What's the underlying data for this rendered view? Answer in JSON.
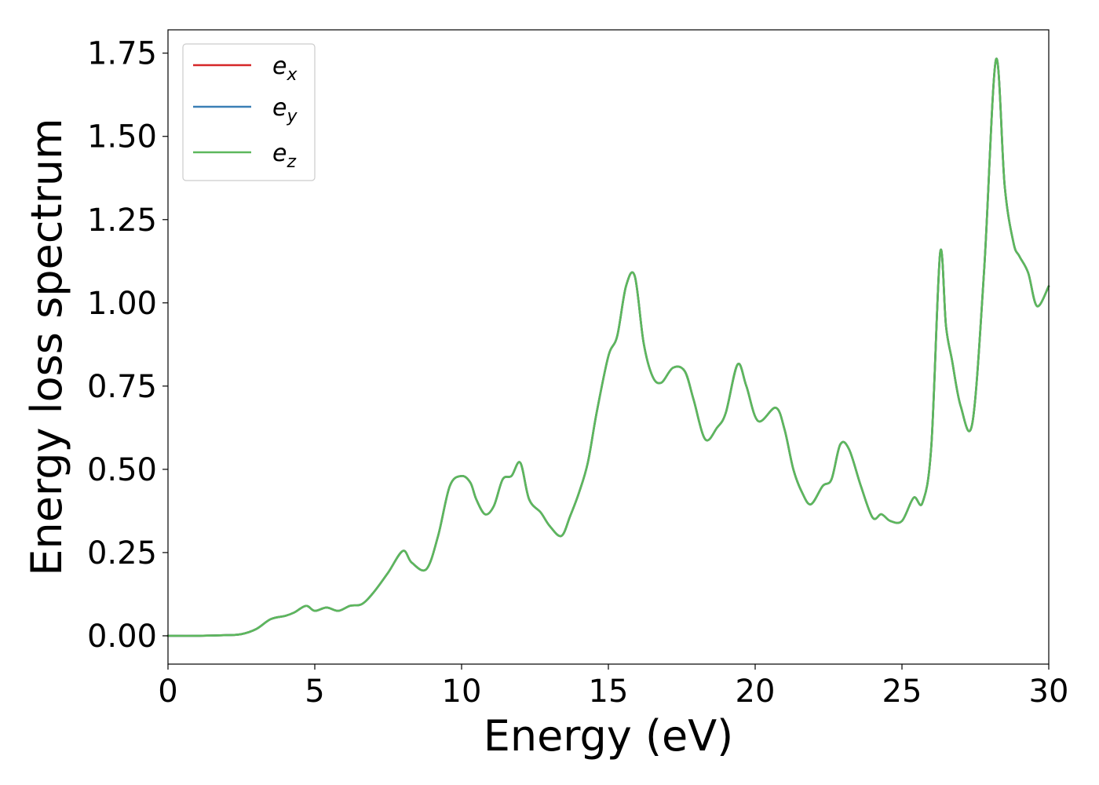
{
  "chart_data": {
    "type": "line",
    "title": "",
    "xlabel": "Energy (eV)",
    "ylabel": "Energy loss spectrum",
    "xlim": [
      0,
      30
    ],
    "ylim": [
      -0.085,
      1.82
    ],
    "xticks": [
      0,
      5,
      10,
      15,
      20,
      25,
      30
    ],
    "xtick_labels": [
      "0",
      "5",
      "10",
      "15",
      "20",
      "25",
      "30"
    ],
    "yticks": [
      0.0,
      0.25,
      0.5,
      0.75,
      1.0,
      1.25,
      1.5,
      1.75
    ],
    "ytick_labels": [
      "0.00",
      "0.25",
      "0.50",
      "0.75",
      "1.00",
      "1.25",
      "1.50",
      "1.75"
    ],
    "grid": false,
    "legend": "top-left",
    "series": [
      {
        "name": "e",
        "subscript": "x",
        "color": "#d62728"
      },
      {
        "name": "e",
        "subscript": "y",
        "color": "#3a7fb5"
      },
      {
        "name": "e",
        "subscript": "z",
        "color": "#5cb85c"
      }
    ],
    "x": [
      0,
      1,
      2,
      2.5,
      3,
      3.5,
      4,
      4.3,
      4.7,
      5,
      5.4,
      5.8,
      6.2,
      6.6,
      7,
      7.5,
      8,
      8.3,
      8.8,
      9.2,
      9.6,
      10,
      10.3,
      10.5,
      10.8,
      11.1,
      11.4,
      11.7,
      12,
      12.3,
      12.7,
      13,
      13.4,
      13.7,
      14,
      14.3,
      14.6,
      15,
      15.3,
      15.6,
      15.9,
      16.2,
      16.5,
      16.8,
      17.2,
      17.6,
      17.9,
      18.3,
      18.7,
      19.0,
      19.4,
      19.7,
      20.1,
      20.7,
      21.0,
      21.3,
      21.6,
      21.9,
      22.3,
      22.6,
      22.9,
      23.2,
      23.6,
      24.0,
      24.3,
      24.6,
      25.0,
      25.4,
      25.7,
      26.0,
      26.3,
      26.5,
      26.7,
      27.0,
      27.4,
      27.8,
      28.2,
      28.5,
      28.8,
      29.0,
      29.3,
      29.6,
      30
    ],
    "values": [
      0,
      0,
      0.002,
      0.005,
      0.02,
      0.05,
      0.06,
      0.07,
      0.09,
      0.075,
      0.085,
      0.075,
      0.09,
      0.095,
      0.13,
      0.19,
      0.255,
      0.22,
      0.2,
      0.3,
      0.45,
      0.48,
      0.46,
      0.41,
      0.365,
      0.39,
      0.47,
      0.48,
      0.52,
      0.41,
      0.37,
      0.33,
      0.3,
      0.36,
      0.43,
      0.52,
      0.67,
      0.84,
      0.9,
      1.05,
      1.08,
      0.88,
      0.78,
      0.76,
      0.805,
      0.795,
      0.71,
      0.59,
      0.625,
      0.67,
      0.815,
      0.75,
      0.645,
      0.685,
      0.62,
      0.5,
      0.43,
      0.395,
      0.45,
      0.47,
      0.575,
      0.56,
      0.45,
      0.355,
      0.365,
      0.345,
      0.345,
      0.415,
      0.4,
      0.57,
      1.15,
      0.93,
      0.83,
      0.69,
      0.64,
      1.1,
      1.73,
      1.35,
      1.18,
      1.14,
      1.09,
      0.99,
      1.05
    ]
  }
}
